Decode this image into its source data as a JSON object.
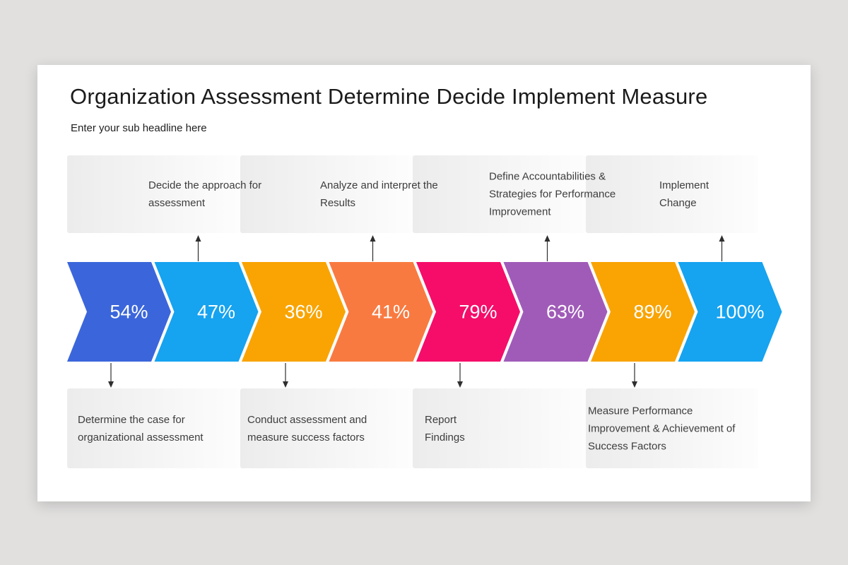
{
  "page": {
    "background_color": "#e1e0df",
    "card_color": "#ffffff"
  },
  "slide": {
    "title": "Organization Assessment Determine Decide Implement Measure",
    "subtitle": "Enter your sub headline here"
  },
  "process": {
    "steps": [
      {
        "percent": "54%",
        "color": "#3B66DB",
        "note_side": "bottom"
      },
      {
        "percent": "47%",
        "color": "#16A3F0",
        "note_side": "top"
      },
      {
        "percent": "36%",
        "color": "#F9A402",
        "note_side": "bottom"
      },
      {
        "percent": "41%",
        "color": "#F97A40",
        "note_side": "top"
      },
      {
        "percent": "79%",
        "color": "#F50D69",
        "note_side": "bottom"
      },
      {
        "percent": "63%",
        "color": "#A05BB8",
        "note_side": "top"
      },
      {
        "percent": "89%",
        "color": "#F9A402",
        "note_side": "bottom"
      },
      {
        "percent": "100%",
        "color": "#16A3F0",
        "note_side": "top"
      }
    ],
    "top_notes": [
      {
        "lines": [
          "Decide the approach for",
          "assessment"
        ]
      },
      {
        "lines": [
          "Analyze and interpret the",
          "Results"
        ]
      },
      {
        "lines": [
          "Define Accountabilities &",
          "Strategies for Performance",
          "Improvement"
        ]
      },
      {
        "lines": [
          "Implement",
          "Change"
        ]
      }
    ],
    "bottom_notes": [
      {
        "lines": [
          "Determine the case for",
          "organizational assessment"
        ]
      },
      {
        "lines": [
          "Conduct assessment and",
          "measure success factors"
        ]
      },
      {
        "lines": [
          "Report",
          "Findings"
        ]
      },
      {
        "lines": [
          "Measure Performance",
          "Improvement & Achievement of",
          "Success Factors"
        ]
      }
    ],
    "arrow_color": "#2e2e2e"
  }
}
